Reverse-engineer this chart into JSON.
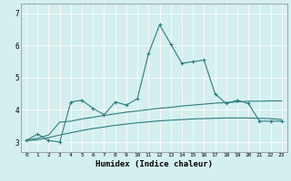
{
  "xlabel": "Humidex (Indice chaleur)",
  "bg_color": "#d4efef",
  "grid_color": "#ffffff",
  "line_color": "#2d7d7d",
  "xlim": [
    -0.5,
    23.5
  ],
  "ylim": [
    2.7,
    7.3
  ],
  "yticks": [
    3,
    4,
    5,
    6,
    7
  ],
  "xticks": [
    0,
    1,
    2,
    3,
    4,
    5,
    6,
    7,
    8,
    9,
    10,
    11,
    12,
    13,
    14,
    15,
    16,
    17,
    18,
    19,
    20,
    21,
    22,
    23
  ],
  "x": [
    0,
    1,
    2,
    3,
    4,
    5,
    6,
    7,
    8,
    9,
    10,
    11,
    12,
    13,
    14,
    15,
    16,
    17,
    18,
    19,
    20,
    21,
    22,
    23
  ],
  "y_main": [
    3.05,
    3.25,
    3.05,
    3.0,
    4.25,
    4.3,
    4.05,
    3.85,
    4.25,
    4.15,
    4.35,
    5.75,
    6.65,
    6.05,
    5.45,
    5.5,
    5.55,
    4.5,
    4.2,
    4.3,
    4.2,
    3.65,
    3.65,
    3.65
  ],
  "y_upper": [
    3.05,
    3.12,
    3.22,
    3.62,
    3.65,
    3.72,
    3.77,
    3.83,
    3.88,
    3.93,
    3.97,
    4.01,
    4.05,
    4.08,
    4.12,
    4.15,
    4.18,
    4.21,
    4.23,
    4.25,
    4.27,
    4.27,
    4.28,
    4.28
  ],
  "y_lower": [
    3.05,
    3.07,
    3.14,
    3.22,
    3.29,
    3.36,
    3.42,
    3.47,
    3.52,
    3.56,
    3.6,
    3.63,
    3.66,
    3.68,
    3.7,
    3.72,
    3.73,
    3.74,
    3.75,
    3.75,
    3.75,
    3.74,
    3.73,
    3.7
  ]
}
